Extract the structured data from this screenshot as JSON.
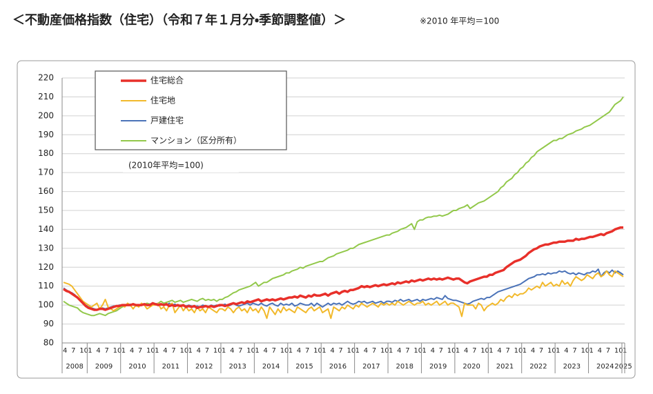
{
  "chart_data": {
    "type": "line",
    "title": "＜不動産価格指数（住宅）（令和７年１月分・季節調整値）＞",
    "note": "※2010 年平均＝100",
    "annotation": "(2010年平均=100)",
    "ylim": [
      80,
      220
    ],
    "yticks": [
      80,
      90,
      100,
      110,
      120,
      130,
      140,
      150,
      160,
      170,
      180,
      190,
      200,
      210,
      220
    ],
    "grid": true,
    "legend": "upper left",
    "years": [
      "2008",
      "2009",
      "2010",
      "2011",
      "2012",
      "2013",
      "2014",
      "2015",
      "2016",
      "2017",
      "2018",
      "2019",
      "2020",
      "2021",
      "2022",
      "2023",
      "2024",
      "2025"
    ],
    "categories": [
      "4",
      null,
      null,
      "7",
      null,
      null,
      "10",
      null,
      null,
      "1",
      null,
      null,
      "4",
      null,
      null,
      "7",
      null,
      null,
      "10",
      null,
      null,
      "1",
      null,
      null,
      "4",
      null,
      null,
      "7",
      null,
      null,
      "10",
      null,
      null,
      "1",
      null,
      null,
      "4",
      null,
      null,
      "7",
      null,
      null,
      "10",
      null,
      null,
      "1",
      null,
      null,
      "4",
      null,
      null,
      "7",
      null,
      null,
      "10",
      null,
      null,
      "1",
      null,
      null,
      "4",
      null,
      null,
      "7",
      null,
      null,
      "10",
      null,
      null,
      "1",
      null,
      null,
      "4",
      null,
      null,
      "7",
      null,
      null,
      "10",
      null,
      null,
      "1",
      null,
      null,
      "4",
      null,
      null,
      "7",
      null,
      null,
      "10",
      null,
      null,
      "1",
      null,
      null,
      "4",
      null,
      null,
      "7",
      null,
      null,
      "10",
      null,
      null,
      "1",
      null,
      null,
      "4",
      null,
      null,
      "7",
      null,
      null,
      "10",
      null,
      null,
      "1",
      null,
      null,
      "4",
      null,
      null,
      "7",
      null,
      null,
      "10",
      null,
      null,
      "1",
      null,
      null,
      "4",
      null,
      null,
      "7",
      null,
      null,
      "10",
      null,
      null,
      "1",
      null,
      null,
      "4",
      null,
      null,
      "7",
      null,
      null,
      "10",
      null,
      null,
      "1",
      null,
      null,
      "4",
      null,
      null,
      "7",
      null,
      null,
      "10",
      null,
      null,
      "1",
      null,
      null,
      "4",
      null,
      null,
      "7",
      null,
      null,
      "10",
      null,
      null,
      "1",
      null,
      null,
      "4",
      null,
      null,
      "7",
      null,
      null,
      "10",
      null,
      null,
      "1",
      null,
      null,
      "4",
      null,
      null,
      "7",
      null,
      null,
      "10",
      null,
      null,
      "1"
    ],
    "series": [
      {
        "name": "住宅総合",
        "color": "#e8302a",
        "width": 3.5,
        "values": [
          108.5,
          107.5,
          107,
          106,
          105,
          104,
          102.5,
          101,
          99.5,
          98.5,
          98,
          97.5,
          97.5,
          98,
          98,
          97.5,
          98,
          98.5,
          99,
          99.5,
          99.5,
          100,
          100,
          100,
          100,
          100.5,
          100,
          100,
          100,
          100.5,
          100,
          100,
          101,
          100.5,
          100,
          100.5,
          100,
          100.5,
          99.5,
          100,
          99.5,
          100,
          99.5,
          100,
          99,
          99.5,
          99,
          99.5,
          98.5,
          99,
          99,
          99.5,
          99,
          99.5,
          99,
          99.5,
          100,
          100,
          99.5,
          100,
          100.5,
          101,
          100.5,
          101,
          101.5,
          101,
          102,
          101.5,
          102,
          102.5,
          103,
          102,
          102.5,
          103,
          102.5,
          103,
          102.5,
          103,
          103.5,
          103,
          103.5,
          104,
          104,
          104.5,
          104,
          105,
          104.5,
          104,
          105,
          104.5,
          105.5,
          105,
          105,
          105.5,
          106,
          105,
          106,
          106.5,
          107,
          106,
          107,
          107.5,
          107,
          108,
          108,
          108.5,
          109,
          110,
          109.5,
          110,
          109.5,
          110,
          110.5,
          110,
          110.5,
          111,
          110.5,
          111,
          111.5,
          111,
          112,
          111.5,
          112,
          112.5,
          112,
          113,
          112.5,
          113,
          113.5,
          113,
          113.5,
          114,
          113.5,
          114,
          113.5,
          114,
          113.5,
          114,
          114.5,
          114,
          113.5,
          114,
          114,
          113,
          112,
          111.5,
          112.5,
          113,
          113.5,
          114,
          114.5,
          115,
          115,
          116,
          116,
          117,
          117.5,
          118,
          118.5,
          120,
          121,
          122,
          123,
          123.5,
          124,
          125,
          126,
          127.5,
          128.5,
          129.5,
          130,
          131,
          131.5,
          132,
          132,
          132.5,
          133,
          133,
          133.5,
          133.5,
          133.5,
          134,
          134,
          134,
          135,
          134.5,
          135,
          135,
          135.5,
          136,
          136,
          136.5,
          137,
          137.5,
          137,
          138,
          138.5,
          139,
          140,
          140.5,
          141,
          141
        ]
      },
      {
        "name": "住宅地",
        "color": "#f2b92b",
        "width": 2,
        "values": [
          112,
          111.5,
          111,
          110,
          108,
          106,
          104,
          102,
          101,
          100,
          99,
          100,
          101,
          98,
          100,
          103,
          99,
          98,
          97,
          98,
          99,
          100,
          99,
          101,
          100,
          98,
          100,
          99,
          101,
          100,
          98,
          99,
          100,
          100,
          101,
          98,
          99,
          97,
          100,
          101,
          96,
          98,
          100,
          97,
          99,
          97,
          98,
          96,
          99,
          97,
          98,
          96,
          99,
          98,
          97,
          96,
          98,
          98,
          97,
          99,
          98,
          96,
          98,
          99,
          97,
          98,
          96,
          99,
          97,
          98,
          96,
          99,
          97,
          93,
          99,
          97,
          95,
          98,
          96,
          99,
          97,
          98,
          97,
          96,
          99,
          98,
          97,
          96,
          98,
          99,
          97,
          98,
          99,
          96,
          97,
          98,
          93,
          99,
          98,
          97,
          99,
          98,
          100,
          99,
          98,
          100,
          99,
          101,
          100,
          99,
          100,
          101,
          100,
          99,
          101,
          100,
          101,
          100,
          101,
          100,
          102,
          101,
          100,
          101,
          102,
          101,
          100,
          101,
          101,
          102,
          100,
          101,
          100,
          101,
          102,
          100,
          101,
          102,
          100,
          101,
          101,
          100,
          99,
          94,
          101,
          100,
          100,
          100,
          98,
          101,
          100,
          97,
          99,
          100,
          101,
          100,
          101,
          103,
          102,
          104,
          105,
          104,
          106,
          105,
          106,
          106,
          107,
          109,
          108,
          109,
          110,
          109,
          112,
          110,
          111,
          112,
          110,
          111,
          110,
          113,
          111,
          112,
          110,
          113,
          115,
          114,
          113,
          114,
          116,
          115,
          114,
          116,
          117,
          115,
          116,
          118,
          116,
          115,
          118,
          117,
          116,
          115
        ]
      },
      {
        "name": "戸建住宅",
        "color": "#4a72b8",
        "width": 2,
        "values": [
          109,
          108,
          107,
          106.5,
          105.5,
          104,
          102.5,
          101,
          100,
          99,
          98.5,
          98,
          97.5,
          98,
          98.5,
          98,
          98.5,
          99,
          99.5,
          99.5,
          100,
          100,
          100,
          100,
          100.5,
          100,
          100,
          99.5,
          100,
          100.5,
          100,
          100.5,
          101,
          100.5,
          101,
          100,
          100.5,
          100,
          101,
          100,
          100.5,
          99.5,
          100,
          100,
          99.5,
          100,
          99.5,
          99,
          99.5,
          99,
          100,
          99.5,
          99,
          100,
          99.5,
          100,
          99.5,
          100,
          100.5,
          99.5,
          100,
          101,
          100,
          99.5,
          100,
          100.5,
          101,
          100,
          101,
          100.5,
          100,
          101,
          100,
          99.5,
          100.5,
          101,
          100,
          99.5,
          101,
          100,
          100.5,
          100,
          101,
          99.5,
          100,
          101,
          100.5,
          100,
          100,
          101,
          99.5,
          101,
          100,
          99,
          100,
          101,
          100,
          101,
          100.5,
          101,
          100,
          101,
          102,
          101,
          100.5,
          101,
          102,
          101.5,
          102,
          101,
          101.5,
          102,
          101,
          101.5,
          102,
          101,
          102,
          102,
          101.5,
          102.5,
          102,
          103,
          102,
          102.5,
          103,
          102,
          102.5,
          103,
          102,
          103,
          102.5,
          103,
          103.5,
          103,
          104,
          103.5,
          103,
          105,
          103.5,
          103,
          102.5,
          102.5,
          102,
          101.5,
          101,
          100.5,
          101,
          102,
          102.5,
          103,
          103.5,
          103,
          104,
          104,
          105,
          106,
          107,
          107.5,
          108,
          108.5,
          109,
          109.5,
          110,
          110.5,
          111,
          112,
          113,
          114,
          114.5,
          115,
          116,
          116,
          116.5,
          116,
          117,
          116.5,
          117,
          117,
          118,
          117.5,
          118,
          117,
          116.5,
          117,
          116,
          117,
          116.5,
          116,
          117,
          117,
          118,
          117.5,
          119,
          115,
          117,
          118,
          117,
          118.5,
          117,
          118,
          117,
          116
        ]
      },
      {
        "name": "マンション（区分所有）",
        "color": "#92c84a",
        "width": 2,
        "values": [
          102,
          101,
          100,
          99.5,
          99,
          98.5,
          97,
          96,
          95.5,
          95,
          94.5,
          94.5,
          95,
          95.5,
          95,
          94.5,
          95.5,
          96,
          96.5,
          97,
          98,
          99,
          99.5,
          100,
          100,
          100.5,
          99.5,
          100,
          100,
          100.5,
          101,
          100.5,
          101,
          100.5,
          101,
          102,
          101,
          101.5,
          102,
          102.5,
          101.5,
          102,
          102.5,
          101.5,
          102,
          102.5,
          103,
          102.5,
          102,
          103,
          103.5,
          102.5,
          103,
          102.5,
          103,
          102,
          103,
          103,
          104,
          104.5,
          105.5,
          106.5,
          107,
          108,
          108.5,
          109,
          109.5,
          110,
          111,
          112,
          110,
          111,
          112,
          112,
          113,
          114,
          114.5,
          115,
          115.5,
          116,
          117,
          117,
          118,
          118.5,
          119,
          120,
          119.5,
          120.5,
          121,
          121.5,
          122,
          122.5,
          123,
          123,
          124,
          125,
          125.5,
          126,
          127,
          127.5,
          128,
          128.5,
          129,
          130,
          130,
          131,
          132,
          132.5,
          133,
          133.5,
          134,
          134.5,
          135,
          135.5,
          136,
          136.5,
          137,
          137,
          138,
          138.5,
          139,
          140,
          140.5,
          141,
          142,
          143,
          140,
          144,
          145,
          145,
          146,
          146.5,
          146.5,
          147,
          147,
          147.5,
          147,
          147.5,
          148,
          149,
          150,
          150,
          151,
          151.5,
          152,
          153,
          151,
          152,
          153,
          154,
          154.5,
          155,
          156,
          157,
          158,
          159,
          160,
          162,
          163,
          165,
          166,
          167,
          169,
          170,
          172,
          173,
          175,
          176,
          178,
          179,
          181,
          182,
          183,
          184,
          185,
          186,
          187,
          187,
          188,
          188,
          189,
          190,
          190.5,
          191,
          192,
          192.5,
          193,
          194,
          194.5,
          195,
          196,
          197,
          198,
          199,
          200,
          201,
          202,
          204,
          206,
          207,
          208,
          210
        ]
      }
    ]
  }
}
